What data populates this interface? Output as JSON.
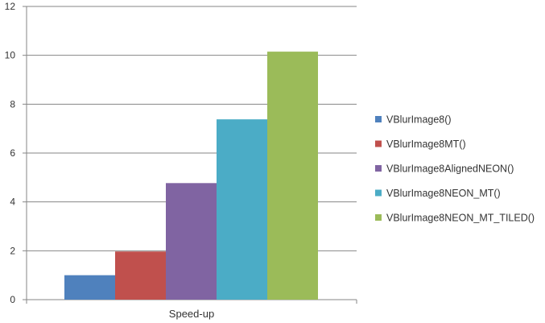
{
  "chart_data": {
    "type": "bar",
    "categories": [
      "Speed-up"
    ],
    "series": [
      {
        "name": "VBlurImage8()",
        "values": [
          1.0
        ],
        "color": "#4F81BD"
      },
      {
        "name": "VBlurImage8MT()",
        "values": [
          1.97
        ],
        "color": "#C0504D"
      },
      {
        "name": "VBlurImage8AlignedNEON()",
        "values": [
          4.77
        ],
        "color": "#8064A2"
      },
      {
        "name": "VBlurImage8NEON_MT()",
        "values": [
          7.38
        ],
        "color": "#4BACC6"
      },
      {
        "name": "VBlurImage8NEON_MT_TILED()",
        "values": [
          10.15
        ],
        "color": "#9BBB59"
      }
    ],
    "y_ticks": [
      "0",
      "2",
      "4",
      "6",
      "8",
      "10",
      "12"
    ],
    "ylim": [
      0,
      12
    ],
    "grid": true,
    "legend_position": "right"
  }
}
